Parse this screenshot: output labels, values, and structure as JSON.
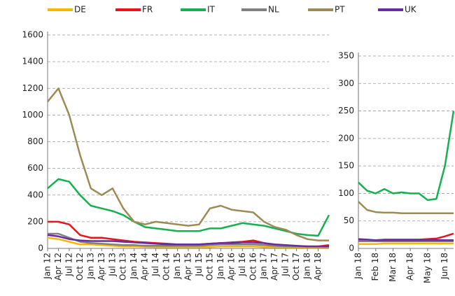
{
  "chart_data": [
    {
      "type": "line",
      "categories": [
        "Jan 12",
        "Apr 12",
        "Jul 12",
        "Oct 12",
        "Jan 13",
        "Apr 13",
        "Jul 13",
        "Oct 13",
        "Jan 14",
        "Apr 14",
        "Jul 14",
        "Oct 14",
        "Jan 15",
        "Apr 15",
        "Jul 15",
        "Oct 15",
        "Jan 16",
        "Apr 16",
        "Jul 16",
        "Oct 16",
        "Jan 17",
        "Apr 17",
        "Jul 17",
        "Oct 17",
        "Jan 18",
        "Apr 18",
        null
      ],
      "series": [
        {
          "name": "DE",
          "color": "#f5b800",
          "values": [
            80,
            70,
            50,
            30,
            30,
            25,
            20,
            15,
            15,
            12,
            10,
            10,
            10,
            10,
            10,
            10,
            15,
            15,
            15,
            15,
            10,
            10,
            8,
            8,
            8,
            8,
            10
          ]
        },
        {
          "name": "FR",
          "color": "#e8141c",
          "values": [
            200,
            200,
            180,
            100,
            80,
            80,
            70,
            60,
            50,
            45,
            40,
            35,
            30,
            30,
            30,
            35,
            40,
            45,
            50,
            60,
            40,
            25,
            20,
            18,
            15,
            15,
            25
          ]
        },
        {
          "name": "IT",
          "color": "#16b04f",
          "values": [
            450,
            520,
            500,
            400,
            320,
            300,
            280,
            250,
            200,
            160,
            150,
            140,
            130,
            130,
            130,
            150,
            150,
            170,
            190,
            180,
            170,
            150,
            130,
            110,
            100,
            95,
            250
          ]
        },
        {
          "name": "NL",
          "color": "#808080",
          "values": [
            110,
            110,
            80,
            50,
            40,
            35,
            30,
            25,
            25,
            20,
            20,
            20,
            20,
            20,
            20,
            25,
            30,
            30,
            30,
            30,
            25,
            20,
            15,
            15,
            15,
            15,
            15
          ]
        },
        {
          "name": "PT",
          "color": "#9c8b55",
          "values": [
            1100,
            1200,
            1000,
            700,
            450,
            400,
            450,
            300,
            200,
            180,
            200,
            190,
            180,
            170,
            180,
            300,
            320,
            290,
            280,
            270,
            200,
            160,
            140,
            100,
            70,
            60,
            60
          ]
        },
        {
          "name": "UK",
          "color": "#6a2aa0",
          "values": [
            100,
            90,
            70,
            60,
            55,
            55,
            55,
            50,
            45,
            40,
            35,
            30,
            30,
            30,
            30,
            35,
            40,
            40,
            45,
            45,
            40,
            30,
            25,
            20,
            15,
            15,
            15
          ]
        }
      ],
      "ylim": [
        0,
        1600
      ],
      "yticks": [
        0,
        200,
        400,
        600,
        800,
        1000,
        1200,
        1400,
        1600
      ],
      "grid": true
    },
    {
      "type": "line",
      "categories": [
        "Jan 18",
        null,
        "Feb 18",
        null,
        "Mar 18",
        null,
        "Apr 18",
        null,
        "May 18",
        null,
        "Jun 18",
        null
      ],
      "series": [
        {
          "color": "#f5b800",
          "values": [
            8,
            8,
            8,
            9,
            9,
            9,
            9,
            9,
            9,
            9,
            9,
            9
          ]
        },
        {
          "color": "#e8141c",
          "values": [
            15,
            15,
            15,
            16,
            16,
            16,
            16,
            16,
            17,
            18,
            22,
            27
          ]
        },
        {
          "color": "#16b04f",
          "values": [
            120,
            105,
            100,
            108,
            100,
            102,
            100,
            100,
            88,
            90,
            150,
            250
          ]
        },
        {
          "color": "#808080",
          "values": [
            13,
            13,
            13,
            13,
            13,
            13,
            13,
            13,
            13,
            13,
            13,
            13
          ]
        },
        {
          "color": "#9c8b55",
          "values": [
            85,
            70,
            66,
            65,
            65,
            64,
            64,
            64,
            64,
            64,
            64,
            64
          ]
        },
        {
          "color": "#6a2aa0",
          "values": [
            17,
            16,
            15,
            15,
            15,
            15,
            15,
            15,
            15,
            15,
            15,
            15
          ]
        }
      ],
      "ylim": [
        0,
        350
      ],
      "yticks": [
        0,
        50,
        100,
        150,
        200,
        250,
        300,
        350
      ],
      "grid": true
    }
  ]
}
